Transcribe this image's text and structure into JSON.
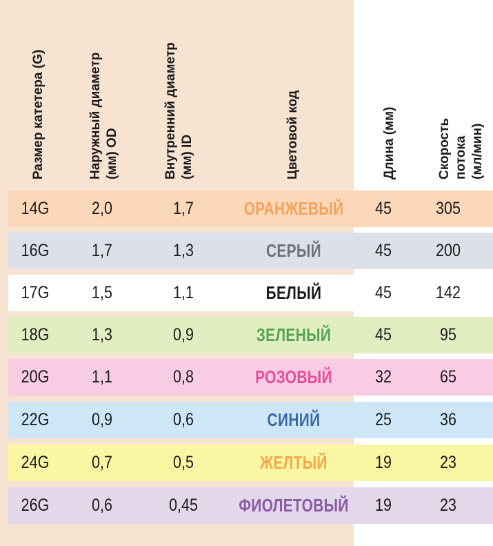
{
  "headers": {
    "size": "Размер катетера (G)",
    "od": "Наружный диаметр\n(мм) OD",
    "id": "Внутренний диаметр\n(мм) ID",
    "color": "Цветовой код",
    "length": "Длина (мм)",
    "flow": "Скорость потока\n(мл/мин)"
  },
  "rows": [
    {
      "size": "14G",
      "od": "2,0",
      "id": "1,7",
      "color": "ОРАНЖЕВЫЙ",
      "length": "45",
      "flow": "305",
      "bg": "#fcd8bb",
      "text_color": "#f6a25b"
    },
    {
      "size": "16G",
      "od": "1,7",
      "id": "1,3",
      "color": "СЕРЫЙ",
      "length": "45",
      "flow": "200",
      "bg": "#dbe0e9",
      "text_color": "#6f7077"
    },
    {
      "size": "17G",
      "od": "1,5",
      "id": "1,1",
      "color": "БЕЛЫЙ",
      "length": "45",
      "flow": "142",
      "bg": "#ffffff",
      "text_color": "#1a1a1a"
    },
    {
      "size": "18G",
      "od": "1,3",
      "id": "0,9",
      "color": "ЗЕЛЕНЫЙ",
      "length": "45",
      "flow": "95",
      "bg": "#e2edc1",
      "text_color": "#52a454"
    },
    {
      "size": "20G",
      "od": "1,1",
      "id": "0,8",
      "color": "РОЗОВЫЙ",
      "length": "32",
      "flow": "65",
      "bg": "#f8cde3",
      "text_color": "#ea4c9a"
    },
    {
      "size": "22G",
      "od": "0,9",
      "id": "0,6",
      "color": "СИНИЙ",
      "length": "25",
      "flow": "36",
      "bg": "#cde7f6",
      "text_color": "#3a6aa6"
    },
    {
      "size": "24G",
      "od": "0,7",
      "id": "0,5",
      "color": "ЖЕЛТЫЙ",
      "length": "19",
      "flow": "23",
      "bg": "#fbf6a3",
      "text_color": "#f3a84c"
    },
    {
      "size": "26G",
      "od": "0,6",
      "id": "0,45",
      "color": "ФИОЛЕТОВЫЙ",
      "length": "19",
      "flow": "23",
      "bg": "#e3d8ea",
      "text_color": "#8a5aa6"
    }
  ]
}
